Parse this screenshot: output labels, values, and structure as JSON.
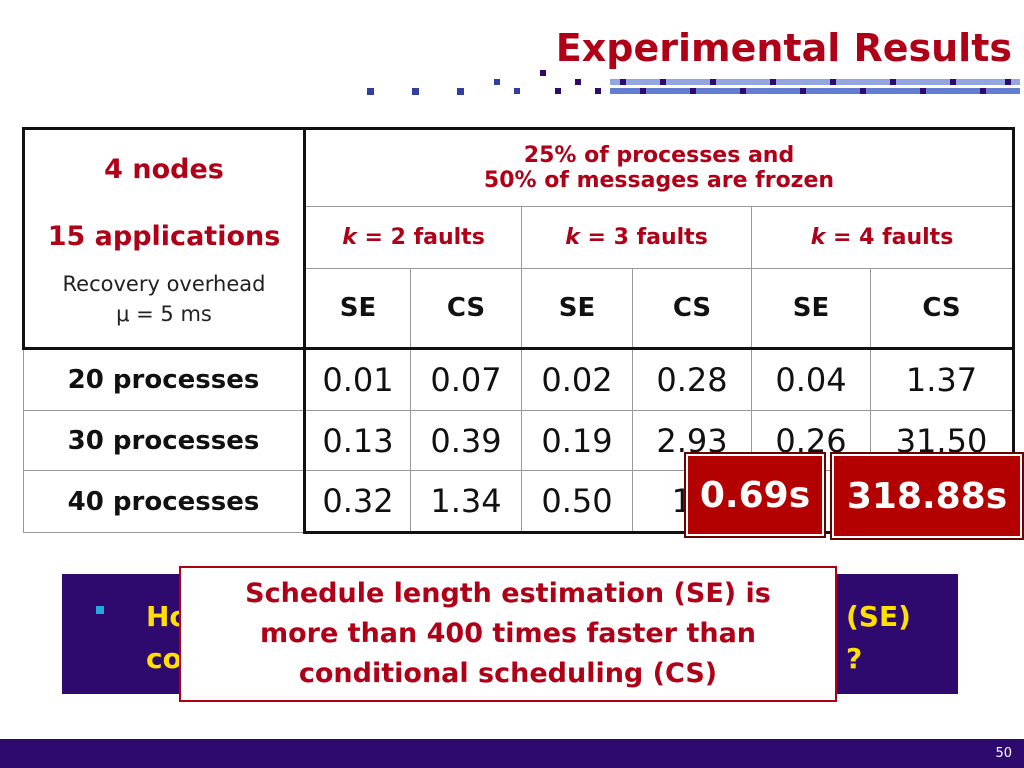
{
  "slide": {
    "title": "Experimental Results",
    "page_number": "50"
  },
  "table": {
    "corner": {
      "nodes": "4 nodes",
      "applications": "15 applications",
      "overhead_line1": "Recovery overhead",
      "overhead_line2": "μ = 5 ms"
    },
    "scenario_line1": "25% of processes and",
    "scenario_line2": "50% of messages are frozen",
    "fault_groups": [
      {
        "k": "k",
        "rest": " = 2 faults"
      },
      {
        "k": "k",
        "rest": " = 3 faults"
      },
      {
        "k": "k",
        "rest": " = 4 faults"
      }
    ],
    "subheaders": [
      "SE",
      "CS",
      "SE",
      "CS",
      "SE",
      "CS"
    ],
    "rows": [
      {
        "label": "20 processes",
        "values": [
          "0.01",
          "0.07",
          "0.02",
          "0.28",
          "0.04",
          "1.37"
        ]
      },
      {
        "label": "30 processes",
        "values": [
          "0.13",
          "0.39",
          "0.19",
          "2.93",
          "0.26",
          "31.50"
        ]
      },
      {
        "label": "40 processes",
        "values": [
          "0.32",
          "1.34",
          "0.50",
          "17",
          "",
          ""
        ]
      }
    ]
  },
  "badges": {
    "se_time": "0.69s",
    "cs_time": "318.88s"
  },
  "question": {
    "left_fragment_line1": "Ho",
    "left_fragment_line2": "co",
    "right_fragment_line1": "(SE)",
    "right_fragment_line2": "?"
  },
  "callout": {
    "line1": "Schedule length estimation (SE) is",
    "line2": "more than 400 times faster than",
    "line3": "conditional scheduling (CS)"
  },
  "colors": {
    "title_red": "#b00018",
    "footer_purple": "#2e0a6e",
    "badge_red": "#b30000",
    "question_yellow": "#ffe000",
    "bullet_cyan": "#21a9e0"
  }
}
